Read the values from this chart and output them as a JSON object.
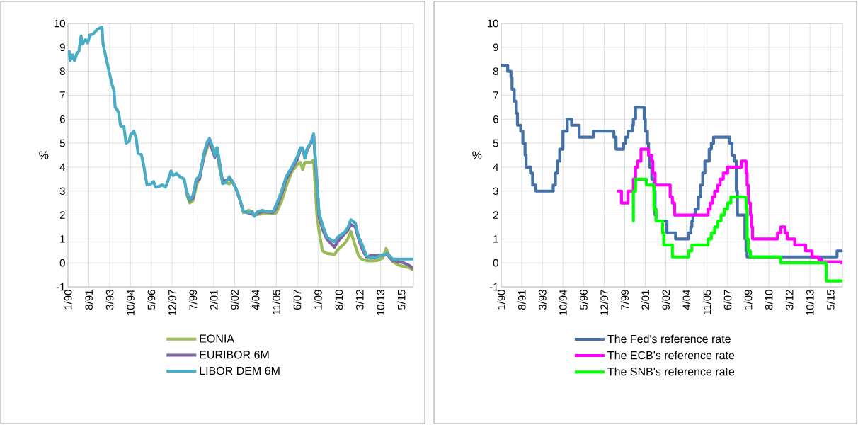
{
  "chart_data": [
    {
      "type": "line",
      "ylabel": "%",
      "xlim": [
        "1990-01",
        "2016-04"
      ],
      "ylim": [
        -1,
        10
      ],
      "yticks": [
        -1,
        0,
        1,
        2,
        3,
        4,
        5,
        6,
        7,
        8,
        9,
        10
      ],
      "xticks": [
        {
          "value": "1990-01",
          "label": "1/90"
        },
        {
          "value": "1991-08",
          "label": "8/91"
        },
        {
          "value": "1993-03",
          "label": "3/93"
        },
        {
          "value": "1994-10",
          "label": "10/94"
        },
        {
          "value": "1996-05",
          "label": "5/96"
        },
        {
          "value": "1997-12",
          "label": "12/97"
        },
        {
          "value": "1999-07",
          "label": "7/99"
        },
        {
          "value": "2001-02",
          "label": "2/01"
        },
        {
          "value": "2002-09",
          "label": "9/02"
        },
        {
          "value": "2004-04",
          "label": "4/04"
        },
        {
          "value": "2005-11",
          "label": "11/05"
        },
        {
          "value": "2007-06",
          "label": "6/07"
        },
        {
          "value": "2009-01",
          "label": "1/09"
        },
        {
          "value": "2010-08",
          "label": "8/10"
        },
        {
          "value": "2012-03",
          "label": "3/12"
        },
        {
          "value": "2013-10",
          "label": "10/13"
        },
        {
          "value": "2015-05",
          "label": "5/15"
        }
      ],
      "grid": true,
      "legend": "bottom",
      "marker": "none",
      "line_style": "solid",
      "series": [
        {
          "name": "EONIA",
          "color": "#9bbb59",
          "x": [
            "1999-01",
            "1999-04",
            "1999-07",
            "1999-10",
            "2000-01",
            "2000-05",
            "2000-08",
            "2000-10",
            "2000-12",
            "2001-03",
            "2001-05",
            "2001-07",
            "2001-10",
            "2002-04",
            "2002-07",
            "2002-11",
            "2003-02",
            "2003-05",
            "2003-10",
            "2004-03",
            "2004-10",
            "2005-08",
            "2005-11",
            "2006-04",
            "2006-08",
            "2007-01",
            "2007-06",
            "2007-09",
            "2007-11",
            "2008-01",
            "2008-07",
            "2008-09",
            "2008-12",
            "2009-02",
            "2009-05",
            "2009-09",
            "2010-04",
            "2010-07",
            "2011-01",
            "2011-04",
            "2011-07",
            "2011-11",
            "2012-02",
            "2012-05",
            "2012-09",
            "2013-01",
            "2013-07",
            "2013-12",
            "2014-03",
            "2014-06",
            "2014-09",
            "2015-03",
            "2015-07",
            "2015-12",
            "2016-04"
          ],
          "values": [
            2.9,
            2.5,
            2.6,
            3.2,
            3.6,
            4.4,
            4.8,
            5.0,
            4.9,
            4.7,
            4.8,
            4.0,
            3.4,
            3.3,
            3.4,
            3.0,
            2.6,
            2.1,
            2.2,
            2.0,
            2.05,
            2.05,
            2.1,
            2.6,
            3.2,
            3.8,
            4.1,
            4.2,
            3.9,
            4.2,
            4.2,
            4.3,
            2.0,
            1.3,
            0.5,
            0.4,
            0.35,
            0.55,
            0.8,
            1.0,
            1.3,
            0.7,
            0.3,
            0.15,
            0.1,
            0.08,
            0.1,
            0.2,
            0.6,
            0.3,
            0.05,
            -0.1,
            -0.15,
            -0.2,
            -0.3
          ]
        },
        {
          "name": "EURIBOR 6M",
          "color": "#8064a2",
          "x": [
            "1999-01",
            "1999-04",
            "1999-07",
            "1999-10",
            "2000-01",
            "2000-05",
            "2000-08",
            "2000-10",
            "2000-12",
            "2001-03",
            "2001-05",
            "2001-07",
            "2001-10",
            "2002-04",
            "2002-07",
            "2002-11",
            "2003-02",
            "2003-05",
            "2004-03",
            "2004-10",
            "2005-08",
            "2005-11",
            "2006-04",
            "2006-08",
            "2007-01",
            "2007-06",
            "2007-09",
            "2007-11",
            "2008-01",
            "2008-03",
            "2008-07",
            "2008-09",
            "2008-12",
            "2009-02",
            "2009-06",
            "2009-09",
            "2010-04",
            "2010-07",
            "2011-01",
            "2011-04",
            "2011-07",
            "2011-11",
            "2012-02",
            "2012-05",
            "2012-09",
            "2013-01",
            "2013-07",
            "2014-04",
            "2014-09",
            "2015-03",
            "2015-07",
            "2015-12",
            "2016-04"
          ],
          "values": [
            3.0,
            2.6,
            2.7,
            3.4,
            3.5,
            4.5,
            4.95,
            5.1,
            4.8,
            4.4,
            4.7,
            4.2,
            3.4,
            3.5,
            3.4,
            3.0,
            2.6,
            2.15,
            2.0,
            2.15,
            2.1,
            2.3,
            2.9,
            3.5,
            3.9,
            4.3,
            4.75,
            4.75,
            4.4,
            4.7,
            5.05,
            5.3,
            3.3,
            1.9,
            1.3,
            1.0,
            0.65,
            0.9,
            1.2,
            1.35,
            1.6,
            1.5,
            1.0,
            0.6,
            0.25,
            0.3,
            0.3,
            0.35,
            0.1,
            0.05,
            0.0,
            -0.1,
            -0.25
          ]
        },
        {
          "name": "LIBOR DEM 6M",
          "color": "#4bacc6",
          "x": [
            "1990-02",
            "1990-03",
            "1990-05",
            "1990-07",
            "1990-09",
            "1990-11",
            "1991-01",
            "1991-02",
            "1991-05",
            "1991-07",
            "1991-09",
            "1991-12",
            "1992-04",
            "1992-08",
            "1992-09",
            "1993-01",
            "1993-05",
            "1993-07",
            "1993-08",
            "1993-11",
            "1994-01",
            "1994-04",
            "1994-06",
            "1994-09",
            "1994-10",
            "1995-01",
            "1995-03",
            "1995-05",
            "1995-08",
            "1995-10",
            "1996-01",
            "1996-05",
            "1996-07",
            "1996-09",
            "1997-01",
            "1997-03",
            "1997-06",
            "1997-08",
            "1997-11",
            "1998-01",
            "1998-04",
            "1998-07",
            "1998-11",
            "1999-01",
            "1999-04",
            "1999-07",
            "1999-10",
            "2000-01",
            "2000-05",
            "2000-08",
            "2000-10",
            "2000-12",
            "2001-03",
            "2001-05",
            "2001-07",
            "2001-10",
            "2002-01",
            "2002-04",
            "2002-07",
            "2002-11",
            "2003-02",
            "2003-05",
            "2003-10",
            "2004-01",
            "2004-03",
            "2004-06",
            "2004-10",
            "2005-03",
            "2005-08",
            "2005-11",
            "2006-04",
            "2006-08",
            "2007-01",
            "2007-06",
            "2007-09",
            "2007-11",
            "2008-01",
            "2008-03",
            "2008-07",
            "2008-09",
            "2008-12",
            "2009-02",
            "2009-06",
            "2009-09",
            "2010-04",
            "2010-07",
            "2011-01",
            "2011-04",
            "2011-07",
            "2011-11",
            "2012-02",
            "2012-05",
            "2012-09",
            "2013-01",
            "2013-07",
            "2014-04",
            "2014-09",
            "2016-04"
          ],
          "values": [
            8.88,
            8.45,
            8.69,
            8.45,
            8.74,
            8.84,
            9.47,
            9.13,
            9.32,
            9.18,
            9.51,
            9.56,
            9.76,
            9.85,
            9.13,
            8.3,
            7.48,
            7.19,
            6.51,
            6.31,
            5.73,
            5.68,
            5.0,
            5.1,
            5.34,
            5.49,
            5.25,
            4.57,
            4.52,
            4.08,
            3.26,
            3.31,
            3.4,
            3.16,
            3.21,
            3.26,
            3.16,
            3.4,
            3.84,
            3.65,
            3.74,
            3.6,
            3.5,
            3.02,
            2.63,
            2.82,
            3.5,
            3.6,
            4.57,
            5.05,
            5.2,
            4.96,
            4.47,
            4.81,
            4.28,
            3.31,
            3.36,
            3.6,
            3.4,
            3.02,
            2.63,
            2.14,
            2.1,
            2.14,
            1.95,
            2.14,
            2.19,
            2.14,
            2.14,
            2.43,
            3.02,
            3.6,
            3.99,
            4.42,
            4.81,
            4.81,
            4.37,
            4.76,
            5.1,
            5.39,
            3.4,
            2.05,
            1.46,
            1.08,
            0.88,
            1.08,
            1.27,
            1.46,
            1.8,
            1.66,
            1.08,
            0.79,
            0.3,
            0.2,
            0.25,
            0.4,
            0.16,
            0.16
          ]
        }
      ]
    },
    {
      "type": "step",
      "ylabel": "%",
      "xlim": [
        "1990-01",
        "2016-04"
      ],
      "ylim": [
        -1,
        10
      ],
      "yticks": [
        -1,
        0,
        1,
        2,
        3,
        4,
        5,
        6,
        7,
        8,
        9,
        10
      ],
      "xticks": [
        {
          "value": "1990-01",
          "label": "1/90"
        },
        {
          "value": "1991-08",
          "label": "8/91"
        },
        {
          "value": "1993-03",
          "label": "3/93"
        },
        {
          "value": "1994-10",
          "label": "10/94"
        },
        {
          "value": "1996-05",
          "label": "5/96"
        },
        {
          "value": "1997-12",
          "label": "12/97"
        },
        {
          "value": "1999-07",
          "label": "7/99"
        },
        {
          "value": "2001-02",
          "label": "2/01"
        },
        {
          "value": "2002-09",
          "label": "9/02"
        },
        {
          "value": "2004-04",
          "label": "4/04"
        },
        {
          "value": "2005-11",
          "label": "11/05"
        },
        {
          "value": "2007-06",
          "label": "6/07"
        },
        {
          "value": "2009-01",
          "label": "1/09"
        },
        {
          "value": "2010-08",
          "label": "8/10"
        },
        {
          "value": "2012-03",
          "label": "3/12"
        },
        {
          "value": "2013-10",
          "label": "10/13"
        },
        {
          "value": "2015-05",
          "label": "5/15"
        }
      ],
      "grid": true,
      "legend": "bottom",
      "marker": "none",
      "line_style": "solid",
      "series": [
        {
          "name": "The Fed's reference rate",
          "color": "#4470a5",
          "x": [
            "1990-01",
            "1990-07",
            "1990-10",
            "1990-11",
            "1991-01",
            "1991-03",
            "1991-04",
            "1991-07",
            "1991-09",
            "1991-11",
            "1991-12",
            "1992-04",
            "1992-06",
            "1992-09",
            "1994-01",
            "1994-03",
            "1994-05",
            "1994-07",
            "1994-10",
            "1995-02",
            "1995-06",
            "1996-01",
            "1997-02",
            "1998-09",
            "1998-11",
            "1999-06",
            "1999-08",
            "1999-10",
            "2000-02",
            "2000-03",
            "2000-05",
            "2001-01",
            "2001-02",
            "2001-04",
            "2001-05",
            "2001-06",
            "2001-08",
            "2001-10",
            "2001-11",
            "2001-12",
            "2002-10",
            "2003-06",
            "2004-06",
            "2004-08",
            "2004-09",
            "2004-10",
            "2004-12",
            "2005-03",
            "2005-05",
            "2005-07",
            "2005-09",
            "2006-01",
            "2006-03",
            "2006-05",
            "2007-08",
            "2007-10",
            "2007-12",
            "2008-02",
            "2008-03",
            "2008-10",
            "2008-11",
            "2008-12",
            "2015-11",
            "2016-04"
          ],
          "values": [
            8.25,
            8.0,
            7.75,
            7.25,
            6.75,
            6.25,
            5.75,
            5.5,
            5.0,
            4.5,
            4.0,
            3.75,
            3.25,
            3.0,
            3.25,
            3.75,
            4.25,
            4.75,
            5.5,
            6.0,
            5.75,
            5.25,
            5.5,
            5.25,
            4.75,
            5.0,
            5.25,
            5.5,
            5.75,
            6.0,
            6.5,
            6.0,
            5.5,
            5.0,
            4.5,
            4.0,
            3.5,
            3.0,
            2.0,
            1.75,
            1.25,
            1.0,
            1.25,
            1.5,
            1.75,
            2.0,
            2.25,
            2.75,
            3.25,
            3.75,
            4.25,
            4.75,
            5.0,
            5.25,
            5.0,
            4.5,
            4.25,
            3.0,
            2.0,
            1.0,
            0.5,
            0.25,
            0.5,
            0.5
          ]
        },
        {
          "name": "The ECB's reference rate",
          "color": "#ff00ff",
          "x": [
            "1998-12",
            "1999-04",
            "1999-10",
            "2000-03",
            "2000-05",
            "2000-07",
            "2000-10",
            "2001-05",
            "2001-08",
            "2001-09",
            "2001-11",
            "2003-01",
            "2003-03",
            "2003-05",
            "2005-12",
            "2006-02",
            "2006-04",
            "2006-06",
            "2006-09",
            "2006-11",
            "2007-02",
            "2007-06",
            "2008-07",
            "2008-11",
            "2008-12",
            "2009-01",
            "2009-03",
            "2009-04",
            "2009-05",
            "2011-04",
            "2011-07",
            "2011-11",
            "2012-01",
            "2012-08",
            "2013-06",
            "2013-12",
            "2014-06",
            "2014-09",
            "2016-03",
            "2016-04"
          ],
          "values": [
            3.0,
            2.5,
            3.0,
            3.5,
            4.0,
            4.25,
            4.75,
            4.5,
            4.25,
            3.75,
            3.25,
            2.75,
            2.5,
            2.0,
            2.25,
            2.5,
            2.75,
            3.0,
            3.25,
            3.5,
            3.75,
            4.0,
            4.25,
            3.75,
            3.25,
            2.5,
            2.0,
            1.5,
            1.0,
            1.25,
            1.5,
            1.25,
            1.0,
            0.75,
            0.5,
            0.25,
            0.15,
            0.05,
            0.0,
            0.0
          ]
        },
        {
          "name": "The SNB's reference rate",
          "color": "#00ff00",
          "x": [
            "2000-02",
            "2000-03",
            "2000-05",
            "2001-03",
            "2001-10",
            "2001-12",
            "2002-06",
            "2002-07",
            "2003-03",
            "2004-06",
            "2004-09",
            "2005-12",
            "2006-03",
            "2006-06",
            "2006-09",
            "2006-12",
            "2007-03",
            "2007-06",
            "2007-09",
            "2008-11",
            "2008-12",
            "2009-01",
            "2009-03",
            "2011-07",
            "2015-01",
            "2016-04"
          ],
          "values": [
            1.75,
            3.0,
            3.5,
            3.25,
            2.25,
            1.75,
            1.25,
            0.75,
            0.25,
            0.5,
            0.75,
            1.0,
            1.25,
            1.5,
            1.75,
            2.0,
            2.25,
            2.5,
            2.75,
            2.25,
            1.0,
            0.5,
            0.25,
            0.0,
            -0.75,
            -0.75
          ]
        }
      ]
    }
  ]
}
